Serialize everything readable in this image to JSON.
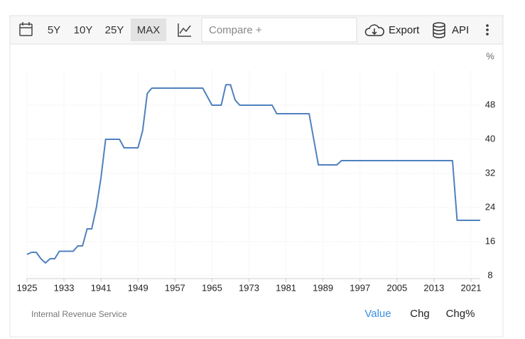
{
  "toolbar": {
    "ranges": [
      "5Y",
      "10Y",
      "25Y",
      "MAX"
    ],
    "compare": "Compare +",
    "export": "Export",
    "api": "API"
  },
  "footer": {
    "source": "Internal Revenue Service",
    "tabs": [
      "Value",
      "Chg",
      "Chg%"
    ]
  },
  "chart_data": {
    "type": "line",
    "y_unit": "%",
    "x": [
      1925,
      1926,
      1927,
      1928,
      1929,
      1930,
      1931,
      1932,
      1933,
      1934,
      1935,
      1936,
      1937,
      1938,
      1939,
      1940,
      1941,
      1942,
      1943,
      1944,
      1945,
      1946,
      1947,
      1948,
      1949,
      1950,
      1951,
      1952,
      1953,
      1954,
      1955,
      1956,
      1957,
      1958,
      1959,
      1960,
      1961,
      1962,
      1963,
      1964,
      1965,
      1966,
      1967,
      1968,
      1969,
      1970,
      1971,
      1972,
      1973,
      1974,
      1975,
      1976,
      1977,
      1978,
      1979,
      1980,
      1981,
      1982,
      1983,
      1984,
      1985,
      1986,
      1987,
      1988,
      1989,
      1990,
      1991,
      1992,
      1993,
      1994,
      1995,
      1996,
      1997,
      1998,
      1999,
      2000,
      2001,
      2002,
      2003,
      2004,
      2005,
      2006,
      2007,
      2008,
      2009,
      2010,
      2011,
      2012,
      2013,
      2014,
      2015,
      2016,
      2017,
      2018,
      2019,
      2020,
      2021,
      2022,
      2023
    ],
    "series": [
      {
        "name": "Value",
        "color": "#4f81bd",
        "values": [
          13,
          13.5,
          13.5,
          12,
          11,
          12,
          12,
          13.75,
          13.75,
          13.75,
          13.75,
          15,
          15,
          19,
          19,
          24,
          31,
          40,
          40,
          40,
          40,
          38,
          38,
          38,
          38,
          42,
          50.75,
          52,
          52,
          52,
          52,
          52,
          52,
          52,
          52,
          52,
          52,
          52,
          52,
          50,
          48,
          48,
          48,
          52.8,
          52.8,
          49.2,
          48,
          48,
          48,
          48,
          48,
          48,
          48,
          48,
          46,
          46,
          46,
          46,
          46,
          46,
          46,
          46,
          40,
          34,
          34,
          34,
          34,
          34,
          35,
          35,
          35,
          35,
          35,
          35,
          35,
          35,
          35,
          35,
          35,
          35,
          35,
          35,
          35,
          35,
          35,
          35,
          35,
          35,
          35,
          35,
          35,
          35,
          35,
          21,
          21,
          21,
          21,
          21,
          21
        ]
      }
    ],
    "xlim": [
      1925,
      2023
    ],
    "xticks": [
      1925,
      1933,
      1941,
      1949,
      1957,
      1965,
      1973,
      1981,
      1989,
      1997,
      2005,
      2013,
      2021
    ],
    "ylim": [
      8,
      56
    ],
    "yticks": [
      8,
      16,
      24,
      32,
      40,
      48
    ],
    "grid": true
  }
}
